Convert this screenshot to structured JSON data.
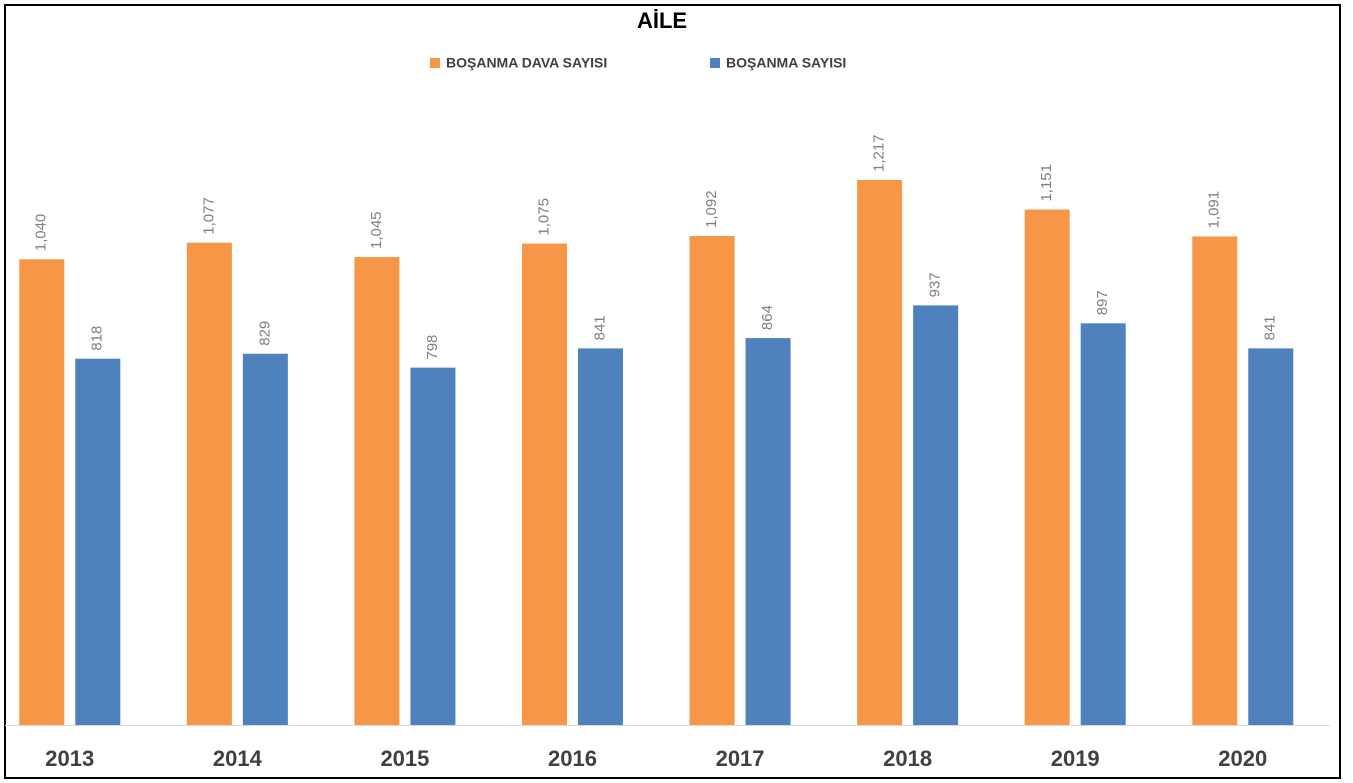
{
  "chart_data": {
    "type": "bar",
    "title": "AİLE",
    "categories": [
      "2013",
      "2014",
      "2015",
      "2016",
      "2017",
      "2018",
      "2019",
      "2020"
    ],
    "series": [
      {
        "name": "BOŞANMA DAVA SAYISI",
        "color": "#f79646",
        "values": [
          1040,
          1077,
          1045,
          1075,
          1092,
          1217,
          1151,
          1091
        ],
        "value_labels": [
          "1,040",
          "1,077",
          "1,045",
          "1,075",
          "1,092",
          "1,217",
          "1,151",
          "1,091"
        ]
      },
      {
        "name": "BOŞANMA SAYISI",
        "color": "#4f81bd",
        "values": [
          818,
          829,
          798,
          841,
          864,
          937,
          897,
          841
        ],
        "value_labels": [
          "818",
          "829",
          "798",
          "841",
          "864",
          "937",
          "897",
          "841"
        ]
      }
    ]
  }
}
